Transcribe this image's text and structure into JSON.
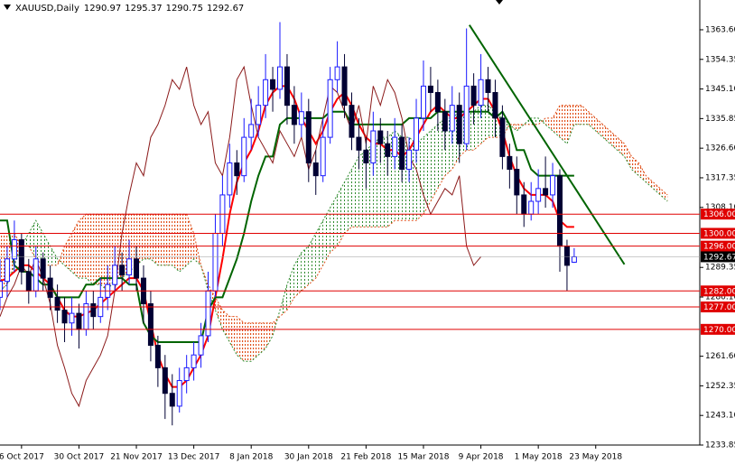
{
  "chart_data": {
    "type": "candlestick",
    "header": {
      "symbol": "XAUUSD,Daily",
      "open": 1290.97,
      "high": 1295.37,
      "low": 1290.75,
      "close": 1292.67
    },
    "xlim": [
      0,
      97.5
    ],
    "xticks": [
      {
        "value": 3,
        "label": "6 Oct 2017"
      },
      {
        "value": 11,
        "label": "30 Oct 2017"
      },
      {
        "value": 19,
        "label": "21 Nov 2017"
      },
      {
        "value": 27,
        "label": "13 Dec 2017"
      },
      {
        "value": 35,
        "label": "8 Jan 2018"
      },
      {
        "value": 43,
        "label": "30 Jan 2018"
      },
      {
        "value": 51,
        "label": "21 Feb 2018"
      },
      {
        "value": 59,
        "label": "15 Mar 2018"
      },
      {
        "value": 67,
        "label": "9 Apr 2018"
      },
      {
        "value": 75,
        "label": "1 May 2018"
      },
      {
        "value": 83,
        "label": "23 May 2018"
      }
    ],
    "ylim": [
      1233.85,
      1372.9
    ],
    "yticks": [
      {
        "value": 1363.6,
        "label": "1363.60"
      },
      {
        "value": 1354.35,
        "label": "1354.35"
      },
      {
        "value": 1345.1,
        "label": "1345.10"
      },
      {
        "value": 1335.85,
        "label": "1335.85"
      },
      {
        "value": 1326.6,
        "label": "1326.60"
      },
      {
        "value": 1317.35,
        "label": "1317.35"
      },
      {
        "value": 1308.1,
        "label": "1308.10"
      },
      {
        "value": 1289.35,
        "label": "1289.35"
      },
      {
        "value": 1280.1,
        "label": "1280.10"
      },
      {
        "value": 1261.6,
        "label": "1261.60"
      },
      {
        "value": 1252.35,
        "label": "1252.35"
      },
      {
        "value": 1243.1,
        "label": "1243.10"
      },
      {
        "value": 1233.85,
        "label": "1233.85"
      }
    ],
    "bull_color": "#1a1aff",
    "bear_color": "#000033",
    "candles": [
      [
        1280,
        1292,
        1276,
        1285
      ],
      [
        1285,
        1296,
        1280,
        1292
      ],
      [
        1292,
        1304,
        1288,
        1298
      ],
      [
        1298,
        1300,
        1284,
        1288
      ],
      [
        1288,
        1292,
        1278,
        1282
      ],
      [
        1282,
        1296,
        1280,
        1292
      ],
      [
        1292,
        1294,
        1282,
        1286
      ],
      [
        1286,
        1290,
        1276,
        1280
      ],
      [
        1280,
        1284,
        1272,
        1276
      ],
      [
        1276,
        1280,
        1266,
        1272
      ],
      [
        1272,
        1280,
        1268,
        1275
      ],
      [
        1275,
        1278,
        1264,
        1270
      ],
      [
        1270,
        1282,
        1268,
        1278
      ],
      [
        1278,
        1282,
        1270,
        1274
      ],
      [
        1274,
        1286,
        1272,
        1280
      ],
      [
        1280,
        1290,
        1276,
        1284
      ],
      [
        1284,
        1296,
        1282,
        1290
      ],
      [
        1290,
        1294,
        1282,
        1287
      ],
      [
        1287,
        1298,
        1284,
        1292
      ],
      [
        1292,
        1296,
        1282,
        1286
      ],
      [
        1286,
        1290,
        1272,
        1278
      ],
      [
        1278,
        1282,
        1260,
        1265
      ],
      [
        1265,
        1268,
        1252,
        1258
      ],
      [
        1258,
        1262,
        1242,
        1250
      ],
      [
        1250,
        1256,
        1240,
        1246
      ],
      [
        1246,
        1258,
        1244,
        1254
      ],
      [
        1254,
        1262,
        1250,
        1258
      ],
      [
        1258,
        1266,
        1254,
        1262
      ],
      [
        1262,
        1272,
        1258,
        1268
      ],
      [
        1268,
        1288,
        1266,
        1282
      ],
      [
        1282,
        1306,
        1280,
        1300
      ],
      [
        1300,
        1318,
        1296,
        1312
      ],
      [
        1312,
        1328,
        1308,
        1322
      ],
      [
        1322,
        1326,
        1312,
        1318
      ],
      [
        1318,
        1336,
        1316,
        1330
      ],
      [
        1330,
        1342,
        1326,
        1334
      ],
      [
        1334,
        1346,
        1330,
        1340
      ],
      [
        1340,
        1356,
        1336,
        1348
      ],
      [
        1348,
        1352,
        1338,
        1345
      ],
      [
        1345,
        1366,
        1342,
        1352
      ],
      [
        1352,
        1356,
        1334,
        1340
      ],
      [
        1340,
        1346,
        1328,
        1334
      ],
      [
        1334,
        1344,
        1330,
        1338
      ],
      [
        1338,
        1342,
        1316,
        1322
      ],
      [
        1322,
        1326,
        1312,
        1318
      ],
      [
        1318,
        1336,
        1316,
        1330
      ],
      [
        1330,
        1352,
        1328,
        1348
      ],
      [
        1348,
        1360,
        1344,
        1352
      ],
      [
        1352,
        1356,
        1336,
        1340
      ],
      [
        1340,
        1344,
        1326,
        1330
      ],
      [
        1330,
        1336,
        1320,
        1326
      ],
      [
        1326,
        1330,
        1314,
        1322
      ],
      [
        1322,
        1338,
        1318,
        1332
      ],
      [
        1332,
        1336,
        1322,
        1328
      ],
      [
        1328,
        1332,
        1318,
        1324
      ],
      [
        1324,
        1336,
        1320,
        1330
      ],
      [
        1330,
        1334,
        1316,
        1320
      ],
      [
        1320,
        1330,
        1316,
        1326
      ],
      [
        1326,
        1342,
        1322,
        1336
      ],
      [
        1336,
        1354,
        1332,
        1346
      ],
      [
        1346,
        1352,
        1338,
        1344
      ],
      [
        1344,
        1348,
        1332,
        1338
      ],
      [
        1338,
        1342,
        1326,
        1332
      ],
      [
        1332,
        1346,
        1328,
        1340
      ],
      [
        1340,
        1344,
        1322,
        1328
      ],
      [
        1328,
        1364,
        1326,
        1346
      ],
      [
        1346,
        1350,
        1334,
        1340
      ],
      [
        1340,
        1356,
        1336,
        1348
      ],
      [
        1348,
        1352,
        1338,
        1344
      ],
      [
        1344,
        1348,
        1330,
        1336
      ],
      [
        1336,
        1340,
        1320,
        1324
      ],
      [
        1324,
        1328,
        1314,
        1320
      ],
      [
        1320,
        1324,
        1306,
        1312
      ],
      [
        1312,
        1316,
        1302,
        1306
      ],
      [
        1306,
        1316,
        1304,
        1310
      ],
      [
        1310,
        1320,
        1306,
        1314
      ],
      [
        1314,
        1324,
        1308,
        1312
      ],
      [
        1312,
        1322,
        1308,
        1318
      ],
      [
        1318,
        1320,
        1288,
        1296
      ],
      [
        1296,
        1298,
        1282,
        1290
      ],
      [
        1290.97,
        1295.37,
        1290.75,
        1292.67
      ]
    ],
    "cloud": {
      "bull_color": "#2e8b2e",
      "bear_color": "#e0501a",
      "span_a": [
        1282,
        1284,
        1290,
        1296,
        1300,
        1304,
        1300,
        1296,
        1292,
        1290,
        1288,
        1286,
        1286,
        1284,
        1284,
        1282,
        1286,
        1286,
        1288,
        1290,
        1292,
        1292,
        1290,
        1290,
        1290,
        1288,
        1290,
        1292,
        1290,
        1282,
        1276,
        1270,
        1266,
        1262,
        1260,
        1260,
        1262,
        1264,
        1268,
        1276,
        1284,
        1290,
        1294,
        1296,
        1300,
        1304,
        1308,
        1312,
        1316,
        1320,
        1324,
        1326,
        1328,
        1330,
        1330,
        1332,
        1330,
        1330,
        1328,
        1330,
        1332,
        1334,
        1336,
        1336,
        1338,
        1338,
        1338,
        1340,
        1340,
        1338,
        1336,
        1334,
        1332,
        1334,
        1336,
        1336,
        1334,
        1332,
        1330,
        1328,
        1334,
        1334,
        1334,
        1332,
        1330,
        1328,
        1326,
        1324,
        1320,
        1318,
        1316,
        1314,
        1312,
        1310
      ],
      "span_b": [
        1300,
        1300,
        1300,
        1296,
        1296,
        1292,
        1290,
        1290,
        1290,
        1296,
        1300,
        1304,
        1306,
        1306,
        1306,
        1306,
        1306,
        1306,
        1306,
        1306,
        1306,
        1306,
        1306,
        1306,
        1306,
        1306,
        1306,
        1300,
        1290,
        1284,
        1280,
        1276,
        1274,
        1274,
        1272,
        1272,
        1272,
        1272,
        1272,
        1274,
        1276,
        1280,
        1282,
        1284,
        1286,
        1290,
        1294,
        1296,
        1300,
        1302,
        1302,
        1302,
        1302,
        1302,
        1302,
        1304,
        1304,
        1304,
        1304,
        1306,
        1310,
        1314,
        1318,
        1320,
        1324,
        1326,
        1326,
        1328,
        1330,
        1330,
        1330,
        1334,
        1334,
        1334,
        1334,
        1334,
        1336,
        1336,
        1340,
        1340,
        1340,
        1340,
        1338,
        1336,
        1334,
        1332,
        1330,
        1328,
        1324,
        1322,
        1318,
        1316,
        1314,
        1312
      ]
    },
    "lines": [
      {
        "color": "#ff0000",
        "width": 2,
        "values": [
          1285,
          1286,
          1288,
          1290,
          1290,
          1288,
          1286,
          1284,
          1280,
          1276,
          1274,
          1274,
          1275,
          1276,
          1278,
          1280,
          1282,
          1284,
          1286,
          1286,
          1282,
          1272,
          1262,
          1256,
          1252,
          1252,
          1254,
          1258,
          1262,
          1268,
          1280,
          1292,
          1306,
          1316,
          1322,
          1326,
          1332,
          1340,
          1344,
          1346,
          1346,
          1342,
          1336,
          1332,
          1328,
          1332,
          1338,
          1342,
          1344,
          1340,
          1334,
          1330,
          1328,
          1328,
          1326,
          1326,
          1324,
          1326,
          1330,
          1334,
          1338,
          1340,
          1338,
          1336,
          1336,
          1338,
          1340,
          1342,
          1342,
          1338,
          1332,
          1324,
          1318,
          1314,
          1312,
          1312,
          1312,
          1310,
          1304,
          1302,
          1302
        ]
      },
      {
        "color": "#006400",
        "width": 2,
        "values": [
          1304,
          1304,
          1290,
          1288,
          1288,
          1286,
          1284,
          1284,
          1280,
          1280,
          1280,
          1280,
          1284,
          1284,
          1286,
          1286,
          1286,
          1286,
          1284,
          1284,
          1272,
          1268,
          1266,
          1266,
          1266,
          1266,
          1266,
          1266,
          1266,
          1276,
          1280,
          1280,
          1286,
          1292,
          1300,
          1310,
          1318,
          1324,
          1324,
          1334,
          1336,
          1336,
          1336,
          1336,
          1336,
          1336,
          1338,
          1338,
          1338,
          1334,
          1334,
          1334,
          1334,
          1334,
          1334,
          1334,
          1334,
          1336,
          1336,
          1336,
          1336,
          1338,
          1338,
          1338,
          1338,
          1338,
          1338,
          1338,
          1338,
          1336,
          1338,
          1334,
          1326,
          1326,
          1320,
          1318,
          1318,
          1318,
          1318,
          1318,
          1318
        ]
      },
      {
        "color": "#8b1a1a",
        "width": 1,
        "values": [
          1274,
          1280,
          1284,
          1290,
          1287,
          1292,
          1286,
          1278,
          1265,
          1258,
          1250,
          1246,
          1254,
          1258,
          1262,
          1268,
          1282,
          1300,
          1312,
          1322,
          1318,
          1330,
          1334,
          1340,
          1348,
          1345,
          1352,
          1340,
          1334,
          1338,
          1322,
          1318,
          1330,
          1348,
          1352,
          1340,
          1330,
          1326,
          1322,
          1332,
          1328,
          1324,
          1330,
          1320,
          1326,
          1336,
          1346,
          1344,
          1338,
          1332,
          1340,
          1328,
          1346,
          1340,
          1348,
          1344,
          1336,
          1324,
          1320,
          1312,
          1306,
          1310,
          1314,
          1312,
          1318,
          1296,
          1290,
          1292.67
        ]
      }
    ],
    "trend_line": {
      "color": "#006400",
      "x": [
        65.4,
        87
      ],
      "y": [
        1365.1,
        1290.3
      ]
    },
    "levels": {
      "color": "#e00000",
      "values": [
        {
          "value": 1306,
          "label": "1306.00"
        },
        {
          "value": 1300,
          "label": "1300.00"
        },
        {
          "value": 1296,
          "label": "1296.00"
        },
        {
          "value": 1282,
          "label": "1282.00"
        },
        {
          "value": 1277,
          "label": "1277.00"
        },
        {
          "value": 1270,
          "label": "1270.00"
        }
      ]
    },
    "current_price": 1292.67
  }
}
